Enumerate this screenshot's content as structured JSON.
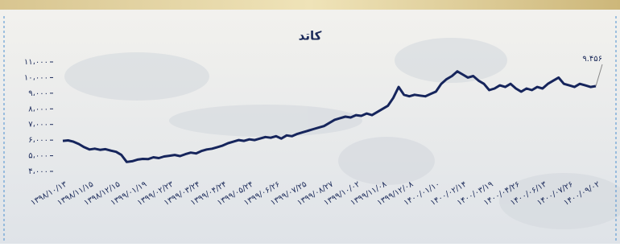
{
  "chart_data": {
    "type": "line",
    "title": "کاتد",
    "categories": [
      "۱۳۹۸/۱۰/۱۳",
      null,
      null,
      null,
      null,
      "۱۳۹۸/۱۱/۱۵",
      null,
      null,
      null,
      null,
      "۱۳۹۸/۱۲/۱۵",
      null,
      null,
      null,
      null,
      "۱۳۹۹/۰۱/۱۹",
      null,
      null,
      null,
      null,
      "۱۳۹۹/۰۲/۲۳",
      null,
      null,
      null,
      null,
      "۱۳۹۹/۰۳/۲۴",
      null,
      null,
      null,
      null,
      "۱۳۹۹/۰۴/۲۴",
      null,
      null,
      null,
      null,
      "۱۳۹۹/۰۵/۲۴",
      null,
      null,
      null,
      null,
      "۱۳۹۹/۰۶/۲۶",
      null,
      null,
      null,
      null,
      "۱۳۹۹/۰۷/۲۵",
      null,
      null,
      null,
      null,
      "۱۳۹۹/۰۸/۲۷",
      null,
      null,
      null,
      null,
      "۱۳۹۹/۱۰/۰۲",
      null,
      null,
      null,
      null,
      "۱۳۹۹/۱۱/۰۸",
      null,
      null,
      null,
      null,
      "۱۳۹۹/۱۲/۰۸",
      null,
      null,
      null,
      null,
      "۱۴۰۰/۰۱/۱۰",
      null,
      null,
      null,
      null,
      "۱۴۰۰/۰۲/۱۴",
      null,
      null,
      null,
      null,
      "۱۴۰۰/۰۳/۱۹",
      null,
      null,
      null,
      null,
      "۱۴۰۰/۰۴/۲۶",
      null,
      null,
      null,
      null,
      "۱۴۰۰/۰۶/۱۳",
      null,
      null,
      null,
      null,
      "۱۴۰۰/۰۷/۲۶",
      null,
      null,
      null,
      null,
      "۱۴۰۰/۰۹/۰۲"
    ],
    "series": [
      {
        "color": "#16255c",
        "values": [
          5950,
          5980,
          5900,
          5750,
          5550,
          5400,
          5450,
          5380,
          5420,
          5330,
          5250,
          5050,
          4600,
          4650,
          4750,
          4800,
          4780,
          4900,
          4850,
          4950,
          5000,
          5050,
          4980,
          5100,
          5200,
          5150,
          5300,
          5400,
          5450,
          5550,
          5650,
          5800,
          5900,
          6000,
          5950,
          6050,
          6000,
          6100,
          6200,
          6150,
          6250,
          6100,
          6300,
          6250,
          6400,
          6500,
          6600,
          6700,
          6800,
          6900,
          7100,
          7300,
          7400,
          7500,
          7450,
          7600,
          7550,
          7700,
          7600,
          7800,
          8000,
          8200,
          8700,
          9400,
          8900,
          8800,
          8900,
          8850,
          8800,
          8950,
          9100,
          9600,
          9900,
          10100,
          10400,
          10200,
          10000,
          10100,
          9800,
          9600,
          9200,
          9300,
          9500,
          9400,
          9600,
          9300,
          9100,
          9300,
          9200,
          9400,
          9300,
          9600,
          9800,
          10000,
          9600,
          9500,
          9400,
          9600,
          9500,
          9400,
          9456
        ]
      }
    ],
    "last_value_label": "۹.۴۵۶",
    "ylim": [
      4000,
      11000
    ],
    "yticks": [
      {
        "value": 4000,
        "label": "۴،۰۰۰"
      },
      {
        "value": 5000,
        "label": "۵،۰۰۰"
      },
      {
        "value": 6000,
        "label": "۶،۰۰۰"
      },
      {
        "value": 7000,
        "label": "۷،۰۰۰"
      },
      {
        "value": 8000,
        "label": "۸،۰۰۰"
      },
      {
        "value": 9000,
        "label": "۹،۰۰۰"
      },
      {
        "value": 10000,
        "label": "۱۰،۰۰۰"
      },
      {
        "value": 11000,
        "label": "۱۱،۰۰۰"
      }
    ],
    "grid": false
  }
}
